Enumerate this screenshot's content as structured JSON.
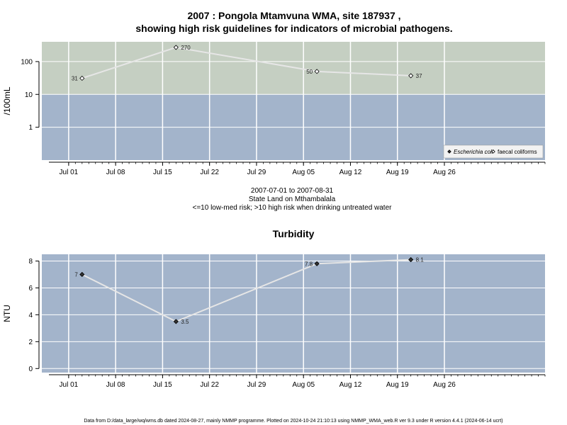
{
  "title_line1": "2007 : Pongola Mtamvuna WMA, site 187937 ,",
  "title_line2": "showing high risk guidelines for indicators of microbial pathogens.",
  "subtitle_lines": [
    "2007-07-01 to 2007-08-31",
    "State Land on Mthambalala",
    "<=10 low-med risk; >10 high risk when drinking untreated water"
  ],
  "footer": "Data from D:/data_large/wq/wms.db dated 2024-08-27, mainly NMMP programme. Plotted on 2024-10-24 21:10:13 using NMMP_WMA_web.R ver 9.3 under R version 4.4.1 (2024-06-14 ucrt)",
  "colors": {
    "high_risk_band": "#c5cfc2",
    "low_risk_band": "#a3b4cb",
    "grid": "#ffffff",
    "series_line": "#e6e6e6",
    "marker_filled": "#333333",
    "marker_open_fill": "#ffffff"
  },
  "chart_data": [
    {
      "type": "line",
      "title": "",
      "ylabel": "/100mL",
      "y_scale": "log",
      "ylim": [
        0.1,
        400
      ],
      "y_ticks": [
        1,
        10,
        100
      ],
      "y_tick_labels": [
        "1",
        "10",
        "100"
      ],
      "threshold": 10,
      "x_range": [
        "2007-06-27",
        "2007-09-10"
      ],
      "x_ticks": [
        "2007-07-01",
        "2007-07-08",
        "2007-07-15",
        "2007-07-22",
        "2007-07-29",
        "2007-08-05",
        "2007-08-12",
        "2007-08-19",
        "2007-08-26"
      ],
      "x_tick_labels": [
        "Jul 01",
        "Jul 08",
        "Jul 15",
        "Jul 22",
        "Jul 29",
        "Aug 05",
        "Aug 12",
        "Aug 19",
        "Aug 26"
      ],
      "series": [
        {
          "name": "faecal coliforms",
          "marker": "open-diamond",
          "x": [
            "2007-07-03",
            "2007-07-17",
            "2007-08-07",
            "2007-08-21"
          ],
          "y": [
            31,
            270,
            50,
            37
          ],
          "labels": [
            "31",
            "270",
            "50",
            "37"
          ]
        }
      ],
      "legend": {
        "placement": "bottom-right",
        "entries": [
          {
            "label": "Escherichia coli",
            "marker": "filled-diamond",
            "italic": true
          },
          {
            "label": "faecal coliforms",
            "marker": "open-diamond",
            "italic": false
          }
        ]
      }
    },
    {
      "type": "line",
      "title": "Turbidity",
      "ylabel": "NTU",
      "y_scale": "linear",
      "ylim": [
        -0.3,
        8.5
      ],
      "y_ticks": [
        0,
        2,
        4,
        6,
        8
      ],
      "y_tick_labels": [
        "0",
        "2",
        "4",
        "6",
        "8"
      ],
      "x_range": [
        "2007-06-27",
        "2007-09-10"
      ],
      "x_ticks": [
        "2007-07-01",
        "2007-07-08",
        "2007-07-15",
        "2007-07-22",
        "2007-07-29",
        "2007-08-05",
        "2007-08-12",
        "2007-08-19",
        "2007-08-26"
      ],
      "x_tick_labels": [
        "Jul 01",
        "Jul 08",
        "Jul 15",
        "Jul 22",
        "Jul 29",
        "Aug 05",
        "Aug 12",
        "Aug 19",
        "Aug 26"
      ],
      "series": [
        {
          "name": "",
          "marker": "filled-diamond",
          "x": [
            "2007-07-03",
            "2007-07-17",
            "2007-08-07",
            "2007-08-21"
          ],
          "y": [
            7,
            3.5,
            7.8,
            8.1
          ],
          "labels": [
            "7",
            "3.5",
            "7.8",
            "8.1"
          ]
        }
      ]
    }
  ]
}
